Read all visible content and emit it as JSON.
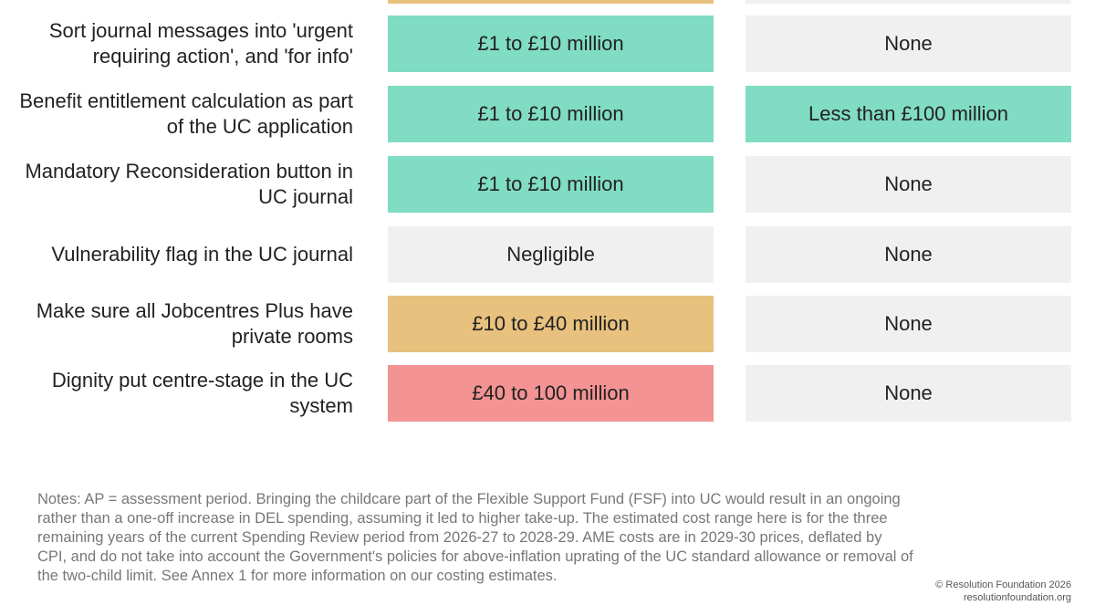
{
  "colors": {
    "green": "#80dcc2",
    "orange": "#e8c17e",
    "red": "#f39393",
    "grey": "#f0f0f0"
  },
  "rows": [
    {
      "label": "Sort journal messages into 'urgent requiring action', and 'for info'",
      "cost": "£1 to £10 million",
      "cost_color": "green",
      "ame": "None",
      "ame_color": "grey"
    },
    {
      "label": "Benefit entitlement calculation as part of the UC application",
      "cost": "£1 to £10 million",
      "cost_color": "green",
      "ame": "Less than £100 million",
      "ame_color": "green"
    },
    {
      "label": "Mandatory Reconsideration button in UC journal",
      "cost": "£1 to £10 million",
      "cost_color": "green",
      "ame": "None",
      "ame_color": "grey"
    },
    {
      "label": "Vulnerability flag in the UC journal",
      "cost": "Negligible",
      "cost_color": "grey",
      "ame": "None",
      "ame_color": "grey"
    },
    {
      "label": "Make sure all Jobcentres Plus have private rooms",
      "cost": "£10 to £40 million",
      "cost_color": "orange",
      "ame": "None",
      "ame_color": "grey"
    },
    {
      "label": "Dignity put centre-stage in the UC system",
      "cost": "£40 to 100 million",
      "cost_color": "red",
      "ame": "None",
      "ame_color": "grey"
    }
  ],
  "notes": "Notes: AP = assessment period. Bringing the childcare part of the Flexible Support Fund (FSF) into UC would result in an ongoing rather than a one-off increase in DEL spending, assuming it led to higher take-up. The estimated cost range here is for the three remaining years of the current Spending Review period from 2026-27 to 2028-29. AME costs are in 2029-30 prices, deflated by CPI, and do not take into account the Government's policies for above-inflation uprating of the UC standard allowance or removal of the two-child limit. See Annex 1 for more information on our costing estimates.",
  "credit": {
    "copyright": "© Resolution Foundation 2026",
    "site": "resolutionfoundation.org"
  }
}
